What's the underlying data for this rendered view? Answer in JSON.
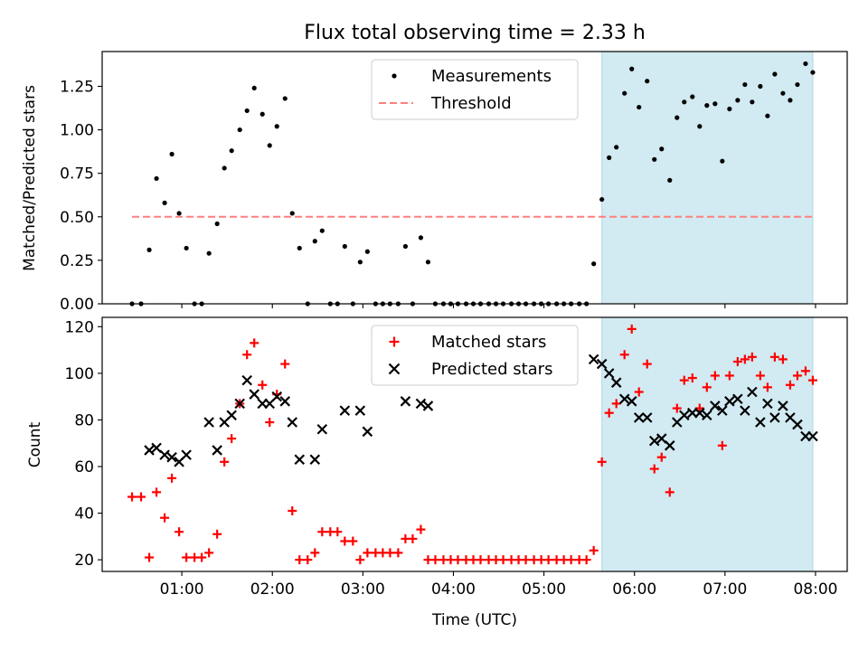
{
  "chart_data": {
    "type": "scatter",
    "title": "Flux total observing time = 2.33 h",
    "xlabel": "Time (UTC)",
    "x_unit": "hours (UTC)",
    "xlim": [
      0.12,
      8.35
    ],
    "x_ticks": [
      {
        "value": 1,
        "label": "01:00"
      },
      {
        "value": 2,
        "label": "02:00"
      },
      {
        "value": 3,
        "label": "03:00"
      },
      {
        "value": 4,
        "label": "04:00"
      },
      {
        "value": 5,
        "label": "05:00"
      },
      {
        "value": 6,
        "label": "06:00"
      },
      {
        "value": 7,
        "label": "07:00"
      },
      {
        "value": 8,
        "label": "08:00"
      }
    ],
    "highlight_span": {
      "x_start": 5.64,
      "x_end": 7.97,
      "color": "#add8e6"
    },
    "panels": [
      {
        "name": "ratio",
        "ylabel": "Matched/Predicted stars",
        "ylim": [
          0,
          1.45
        ],
        "y_ticks": [
          {
            "value": 0.0,
            "label": "0.00"
          },
          {
            "value": 0.25,
            "label": "0.25"
          },
          {
            "value": 0.5,
            "label": "0.50"
          },
          {
            "value": 0.75,
            "label": "0.75"
          },
          {
            "value": 1.0,
            "label": "1.00"
          },
          {
            "value": 1.25,
            "label": "1.25"
          }
        ],
        "legend": {
          "position": "upper center"
        },
        "series": [
          {
            "name": "Measurements",
            "kind": "scatter",
            "marker": "dot",
            "color": "#000000",
            "x": [
              0.45,
              0.55,
              0.64,
              0.72,
              0.81,
              0.89,
              0.97,
              1.05,
              1.14,
              1.22,
              1.3,
              1.39,
              1.47,
              1.55,
              1.64,
              1.72,
              1.8,
              1.89,
              1.97,
              2.05,
              2.14,
              2.22,
              2.3,
              2.39,
              2.47,
              2.55,
              2.64,
              2.72,
              2.8,
              2.89,
              2.97,
              3.05,
              3.14,
              3.22,
              3.3,
              3.39,
              3.47,
              3.55,
              3.64,
              3.72,
              3.8,
              3.89,
              3.97,
              4.05,
              4.14,
              4.22,
              4.3,
              4.39,
              4.47,
              4.55,
              4.64,
              4.72,
              4.8,
              4.89,
              4.97,
              5.05,
              5.14,
              5.22,
              5.3,
              5.39,
              5.47,
              5.55,
              5.64,
              5.72,
              5.8,
              5.89,
              5.97,
              6.05,
              6.14,
              6.22,
              6.3,
              6.39,
              6.47,
              6.55,
              6.64,
              6.72,
              6.8,
              6.89,
              6.97,
              7.05,
              7.14,
              7.22,
              7.3,
              7.39,
              7.47,
              7.55,
              7.64,
              7.72,
              7.8,
              7.89,
              7.97
            ],
            "y": [
              0.0,
              0.0,
              0.31,
              0.72,
              0.58,
              0.86,
              0.52,
              0.32,
              0.0,
              0.0,
              0.29,
              0.46,
              0.78,
              0.88,
              1.0,
              1.11,
              1.24,
              1.09,
              0.91,
              1.02,
              1.18,
              0.52,
              0.32,
              0.0,
              0.36,
              0.42,
              0.0,
              0.0,
              0.33,
              0.0,
              0.24,
              0.3,
              0.0,
              0.0,
              0.0,
              0.0,
              0.33,
              0.0,
              0.38,
              0.24,
              0.0,
              0.0,
              0.0,
              0.0,
              0.0,
              0.0,
              0.0,
              0.0,
              0.0,
              0.0,
              0.0,
              0.0,
              0.0,
              0.0,
              0.0,
              0.0,
              0.0,
              0.0,
              0.0,
              0.0,
              0.0,
              0.23,
              0.6,
              0.84,
              0.9,
              1.21,
              1.35,
              1.13,
              1.28,
              0.83,
              0.89,
              0.71,
              1.07,
              1.16,
              1.19,
              1.02,
              1.14,
              1.15,
              0.82,
              1.12,
              1.17,
              1.26,
              1.16,
              1.25,
              1.08,
              1.32,
              1.21,
              1.17,
              1.26,
              1.38,
              1.33
            ]
          },
          {
            "name": "Threshold",
            "kind": "line",
            "style": "dashed",
            "color": "#ff7f7f",
            "x": [
              0.45,
              7.97
            ],
            "y": [
              0.5,
              0.5
            ]
          }
        ]
      },
      {
        "name": "counts",
        "ylabel": "Count",
        "ylim": [
          15,
          124
        ],
        "y_ticks": [
          {
            "value": 20,
            "label": "20"
          },
          {
            "value": 40,
            "label": "40"
          },
          {
            "value": 60,
            "label": "60"
          },
          {
            "value": 80,
            "label": "80"
          },
          {
            "value": 100,
            "label": "100"
          },
          {
            "value": 120,
            "label": "120"
          }
        ],
        "legend": {
          "position": "upper center"
        },
        "series": [
          {
            "name": "Matched stars",
            "kind": "scatter",
            "marker": "plus",
            "color": "#ff0000",
            "x": [
              0.45,
              0.55,
              0.64,
              0.72,
              0.81,
              0.89,
              0.97,
              1.05,
              1.14,
              1.22,
              1.3,
              1.39,
              1.47,
              1.55,
              1.64,
              1.72,
              1.8,
              1.89,
              1.97,
              2.05,
              2.14,
              2.22,
              2.3,
              2.39,
              2.47,
              2.55,
              2.64,
              2.72,
              2.8,
              2.89,
              2.97,
              3.05,
              3.14,
              3.22,
              3.3,
              3.39,
              3.47,
              3.55,
              3.64,
              3.72,
              3.8,
              3.89,
              3.97,
              4.05,
              4.14,
              4.22,
              4.3,
              4.39,
              4.47,
              4.55,
              4.64,
              4.72,
              4.8,
              4.89,
              4.97,
              5.05,
              5.14,
              5.22,
              5.3,
              5.39,
              5.47,
              5.55,
              5.64,
              5.72,
              5.8,
              5.89,
              5.97,
              6.05,
              6.14,
              6.22,
              6.3,
              6.39,
              6.47,
              6.55,
              6.64,
              6.72,
              6.8,
              6.89,
              6.97,
              7.05,
              7.14,
              7.22,
              7.3,
              7.39,
              7.47,
              7.55,
              7.64,
              7.72,
              7.8,
              7.89,
              7.97
            ],
            "y": [
              47,
              47,
              21,
              49,
              38,
              55,
              32,
              21,
              21,
              21,
              23,
              31,
              62,
              72,
              87,
              108,
              113,
              95,
              79,
              91,
              104,
              41,
              20,
              20,
              23,
              32,
              32,
              32,
              28,
              28,
              20,
              23,
              23,
              23,
              23,
              23,
              29,
              29,
              33,
              20,
              20,
              20,
              20,
              20,
              20,
              20,
              20,
              20,
              20,
              20,
              20,
              20,
              20,
              20,
              20,
              20,
              20,
              20,
              20,
              20,
              20,
              24,
              62,
              83,
              87,
              108,
              119,
              92,
              104,
              59,
              64,
              49,
              85,
              97,
              98,
              85,
              94,
              99,
              69,
              99,
              105,
              106,
              107,
              99,
              94,
              107,
              106,
              95,
              99,
              101,
              97
            ]
          },
          {
            "name": "Predicted stars",
            "kind": "scatter",
            "marker": "x",
            "color": "#000000",
            "x": [
              0.64,
              0.72,
              0.81,
              0.89,
              0.97,
              1.05,
              1.3,
              1.39,
              1.47,
              1.55,
              1.64,
              1.72,
              1.8,
              1.89,
              1.97,
              2.05,
              2.14,
              2.22,
              2.3,
              2.47,
              2.55,
              2.8,
              2.97,
              3.05,
              3.47,
              3.64,
              3.72,
              5.55,
              5.64,
              5.72,
              5.8,
              5.89,
              5.97,
              6.05,
              6.14,
              6.22,
              6.3,
              6.39,
              6.47,
              6.55,
              6.64,
              6.72,
              6.8,
              6.89,
              6.97,
              7.05,
              7.14,
              7.22,
              7.3,
              7.39,
              7.47,
              7.55,
              7.64,
              7.72,
              7.8,
              7.89,
              7.97
            ],
            "y": [
              67,
              68,
              65,
              64,
              62,
              65,
              79,
              67,
              79,
              82,
              87,
              97,
              91,
              87,
              87,
              90,
              88,
              79,
              63,
              63,
              76,
              84,
              84,
              75,
              88,
              87,
              86,
              106,
              104,
              100,
              96,
              89,
              88,
              81,
              81,
              71,
              72,
              69,
              79,
              82,
              83,
              83,
              82,
              86,
              84,
              88,
              89,
              84,
              92,
              79,
              87,
              81,
              86,
              81,
              78,
              73,
              73
            ]
          }
        ]
      }
    ]
  }
}
